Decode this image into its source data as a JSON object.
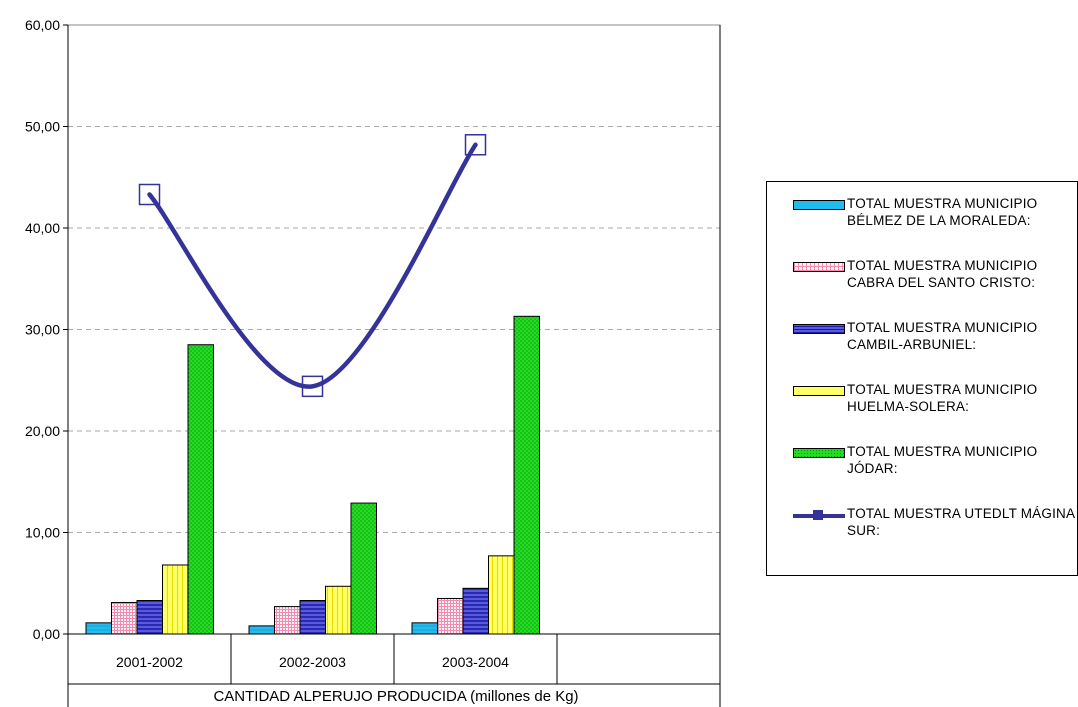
{
  "chart_data": {
    "type": "bar",
    "xlabel": "CANTIDAD ALPERUJO PRODUCIDA (millones de Kg)",
    "ylabel": "",
    "ylim": [
      0,
      60
    ],
    "yticks": [
      "0,00",
      "10,00",
      "20,00",
      "30,00",
      "40,00",
      "50,00",
      "60,00"
    ],
    "grid": true,
    "legend_position": "right",
    "categories": [
      "2001-2002",
      "2002-2003",
      "2003-2004"
    ],
    "series": [
      {
        "name": "TOTAL MUESTRA MUNICIPIO BÉLMEZ DE LA MORALEDA:",
        "kind": "bar",
        "color": "#1fb5e8",
        "values": [
          1.1,
          0.8,
          1.1
        ]
      },
      {
        "name": "TOTAL MUESTRA MUNICIPIO CABRA DEL SANTO CRISTO:",
        "kind": "bar",
        "color": "#ffd6e6",
        "values": [
          3.1,
          2.7,
          3.5
        ]
      },
      {
        "name": "TOTAL MUESTRA MUNICIPIO CAMBIL-ARBUNIEL:",
        "kind": "bar",
        "color": "#4a4ad6",
        "values": [
          3.3,
          3.3,
          4.5
        ]
      },
      {
        "name": "TOTAL MUESTRA MUNICIPIO HUELMA-SOLERA:",
        "kind": "bar",
        "color": "#ffff66",
        "values": [
          6.8,
          4.7,
          7.7
        ]
      },
      {
        "name": "TOTAL MUESTRA MUNICIPIO JÓDAR:",
        "kind": "bar",
        "color": "#22dd22",
        "values": [
          28.5,
          12.9,
          31.3
        ]
      },
      {
        "name": "TOTAL MUESTRA UTEDLT MÁGINA SUR:",
        "kind": "line",
        "color": "#333399",
        "values": [
          43.3,
          24.4,
          48.2
        ]
      }
    ]
  }
}
